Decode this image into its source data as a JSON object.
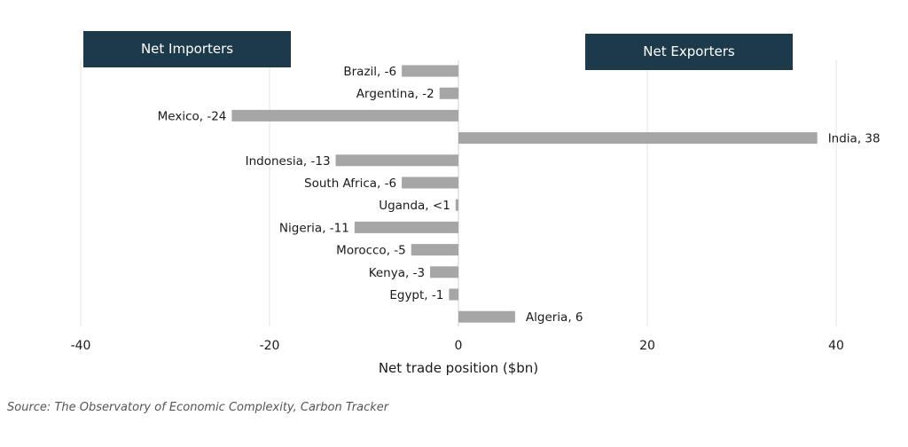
{
  "chart_data": {
    "type": "bar",
    "orientation": "horizontal",
    "categories": [
      "Brazil",
      "Argentina",
      "Mexico",
      "India",
      "Indonesia",
      "South Africa",
      "Uganda",
      "Nigeria",
      "Morocco",
      "Kenya",
      "Egypt",
      "Algeria"
    ],
    "values": [
      -6,
      -2,
      -24,
      38,
      -13,
      -6,
      -0.3,
      -11,
      -5,
      -3,
      -1,
      6
    ],
    "data_labels": [
      "Brazil, -6",
      "Argentina, -2",
      "Mexico, -24",
      "India,  38",
      "Indonesia, -13",
      "South Africa, -6",
      "Uganda, <1",
      "Nigeria, -11",
      "Morocco, -5",
      "Kenya, -3",
      "Egypt, -1",
      "Algeria,  6"
    ],
    "xlabel": "Net trade position ($bn)",
    "xlim": [
      -40,
      40
    ],
    "xticks": [
      -40,
      -20,
      0,
      20,
      40
    ],
    "xtick_labels": [
      "-40",
      "-20",
      "0",
      "20",
      "40"
    ],
    "grid": "vertical",
    "bar_color": "#a6a6a6",
    "annotations": {
      "left_box": "Net Importers",
      "right_box": "Net Exporters",
      "box_color": "#1d3a4a"
    }
  },
  "source": "Source: The Observatory of Economic Complexity, Carbon Tracker"
}
